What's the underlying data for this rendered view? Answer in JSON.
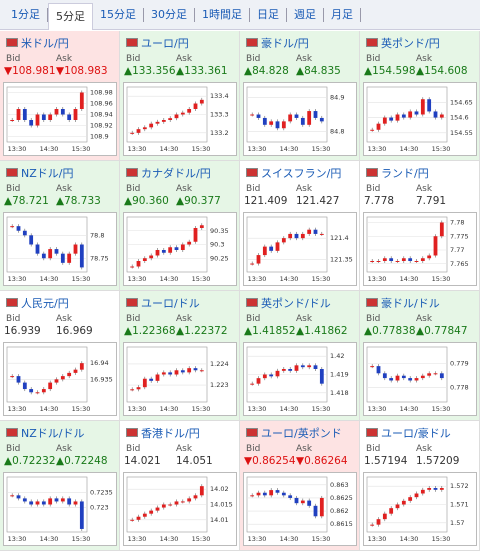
{
  "tabs": [
    "1分足",
    "5分足",
    "15分足",
    "30分足",
    "1時間足",
    "日足",
    "週足",
    "月足"
  ],
  "labels": {
    "bid": "Bid",
    "ask": "Ask"
  },
  "panels": [
    {
      "title": "米ドル/円",
      "bid": "▼108.981",
      "ask": "▼108.983",
      "trend": "down",
      "xticks": [
        "13:30",
        "14:30",
        "15:30"
      ],
      "yticks": [
        108.98,
        108.96,
        108.94,
        108.92,
        108.9
      ],
      "ylim": [
        108.89,
        108.99
      ],
      "values": [
        108.93,
        108.95,
        108.93,
        108.92,
        108.94,
        108.93,
        108.94,
        108.95,
        108.94,
        108.93,
        108.95,
        108.98
      ]
    },
    {
      "title": "ユーロ/円",
      "bid": "▲133.356",
      "ask": "▲133.361",
      "trend": "up",
      "xticks": [
        "13:30",
        "14:30",
        "15:30"
      ],
      "yticks": [
        133.4,
        133.3,
        133.2
      ],
      "ylim": [
        133.15,
        133.45
      ],
      "values": [
        133.2,
        133.22,
        133.23,
        133.25,
        133.26,
        133.27,
        133.28,
        133.3,
        133.31,
        133.33,
        133.36,
        133.38
      ]
    },
    {
      "title": "豪ドル/円",
      "bid": "▲84.828",
      "ask": "▲84.835",
      "trend": "up",
      "xticks": [
        "13:30",
        "14:30",
        "15:30"
      ],
      "yticks": [
        84.9,
        84.8
      ],
      "ylim": [
        84.77,
        84.93
      ],
      "values": [
        84.85,
        84.84,
        84.82,
        84.83,
        84.81,
        84.83,
        84.85,
        84.84,
        84.82,
        84.86,
        84.84,
        84.83
      ]
    },
    {
      "title": "英ポンド/円",
      "bid": "▲154.598",
      "ask": "▲154.608",
      "trend": "up",
      "xticks": [
        "13:30",
        "14:30",
        "15:30"
      ],
      "yticks": [
        154.65,
        154.6,
        154.55
      ],
      "ylim": [
        154.52,
        154.7
      ],
      "values": [
        154.56,
        154.58,
        154.6,
        154.59,
        154.61,
        154.6,
        154.62,
        154.61,
        154.66,
        154.62,
        154.6,
        154.61
      ]
    },
    {
      "title": "NZドル/円",
      "bid": "▲78.721",
      "ask": "▲78.733",
      "trend": "up",
      "xticks": [
        "13:30",
        "14:30",
        "15:30"
      ],
      "yticks": [
        78.8,
        78.75
      ],
      "ylim": [
        78.72,
        78.84
      ],
      "values": [
        78.82,
        78.81,
        78.8,
        78.78,
        78.76,
        78.75,
        78.77,
        78.76,
        78.74,
        78.76,
        78.78,
        78.73
      ]
    },
    {
      "title": "カナダドル/円",
      "bid": "▲90.360",
      "ask": "▲90.377",
      "trend": "up",
      "xticks": [
        "13:30",
        "14:30",
        "15:30"
      ],
      "yticks": [
        90.35,
        90.3,
        90.25
      ],
      "ylim": [
        90.2,
        90.4
      ],
      "values": [
        90.22,
        90.24,
        90.25,
        90.26,
        90.28,
        90.27,
        90.29,
        90.28,
        90.3,
        90.31,
        90.36,
        90.37
      ]
    },
    {
      "title": "スイスフラン/円",
      "bid": "121.409",
      "ask": "121.427",
      "trend": "flat",
      "xticks": [
        "13:30",
        "14:30",
        "15:30"
      ],
      "yticks": [
        121.4,
        121.35
      ],
      "ylim": [
        121.32,
        121.45
      ],
      "values": [
        121.34,
        121.36,
        121.38,
        121.37,
        121.39,
        121.4,
        121.41,
        121.4,
        121.41,
        121.42,
        121.41,
        121.41
      ]
    },
    {
      "title": "ランド/円",
      "bid": "7.778",
      "ask": "7.791",
      "trend": "flat",
      "xticks": [
        "13:30",
        "14:30",
        "15:30"
      ],
      "yticks": [
        7.78,
        7.775,
        7.77,
        7.765
      ],
      "ylim": [
        7.762,
        7.782
      ],
      "values": [
        7.766,
        7.766,
        7.767,
        7.766,
        7.766,
        7.767,
        7.766,
        7.766,
        7.767,
        7.768,
        7.775,
        7.78
      ]
    },
    {
      "title": "人民元/円",
      "bid": "16.939",
      "ask": "16.969",
      "trend": "flat",
      "xticks": [
        "13:30",
        "14:30",
        "15:30"
      ],
      "yticks": [
        16.94,
        16.935
      ],
      "ylim": [
        16.928,
        16.945
      ],
      "values": [
        16.936,
        16.934,
        16.932,
        16.931,
        16.931,
        16.932,
        16.934,
        16.935,
        16.936,
        16.937,
        16.938,
        16.94
      ]
    },
    {
      "title": "ユーロ/ドル",
      "bid": "▲1.22368",
      "ask": "▲1.22372",
      "trend": "up",
      "xticks": [
        "13:30",
        "14:30",
        "15:30"
      ],
      "yticks": [
        1.224,
        1.223
      ],
      "ylim": [
        1.2222,
        1.2248
      ],
      "values": [
        1.2228,
        1.2229,
        1.2233,
        1.2232,
        1.2235,
        1.2236,
        1.2235,
        1.2237,
        1.2236,
        1.2238,
        1.2237,
        1.2237
      ]
    },
    {
      "title": "英ポンド/ドル",
      "bid": "▲1.41852",
      "ask": "▲1.41862",
      "trend": "up",
      "xticks": [
        "13:30",
        "14:30",
        "15:30"
      ],
      "yticks": [
        1.42,
        1.419,
        1.418
      ],
      "ylim": [
        1.4175,
        1.4205
      ],
      "values": [
        1.4185,
        1.4188,
        1.419,
        1.4189,
        1.4192,
        1.4193,
        1.4192,
        1.4195,
        1.4194,
        1.4195,
        1.4193,
        1.4185
      ]
    },
    {
      "title": "豪ドル/ドル",
      "bid": "▲0.77838",
      "ask": "▲0.77847",
      "trend": "up",
      "xticks": [
        "13:30",
        "14:30",
        "15:30"
      ],
      "yticks": [
        0.779,
        0.778
      ],
      "ylim": [
        0.7774,
        0.7797
      ],
      "values": [
        0.7789,
        0.7786,
        0.7784,
        0.7783,
        0.7785,
        0.7784,
        0.7783,
        0.7784,
        0.7785,
        0.7786,
        0.7786,
        0.7784
      ]
    },
    {
      "title": "NZドル/ドル",
      "bid": "▲0.72232",
      "ask": "▲0.72248",
      "trend": "up",
      "xticks": [
        "13:30",
        "14:30",
        "15:30"
      ],
      "yticks": [
        0.7235,
        0.723
      ],
      "ylim": [
        0.7222,
        0.724
      ],
      "values": [
        0.7234,
        0.7233,
        0.7232,
        0.7231,
        0.7232,
        0.7231,
        0.7233,
        0.7232,
        0.7233,
        0.7231,
        0.7232,
        0.7223
      ]
    },
    {
      "title": "香港ドル/円",
      "bid": "14.021",
      "ask": "14.051",
      "trend": "flat",
      "xticks": [
        "13:30",
        "14:30",
        "15:30"
      ],
      "yticks": [
        14.02,
        14.015,
        14.01
      ],
      "ylim": [
        14.006,
        14.024
      ],
      "values": [
        14.01,
        14.011,
        14.012,
        14.013,
        14.014,
        14.015,
        14.015,
        14.016,
        14.016,
        14.017,
        14.018,
        14.021
      ]
    },
    {
      "title": "ユーロ/英ポンド",
      "bid": "▼0.86254",
      "ask": "▼0.86264",
      "trend": "down",
      "xticks": [
        "13:30",
        "14:30",
        "15:30"
      ],
      "yticks": [
        0.863,
        0.8625,
        0.862,
        0.8615
      ],
      "ylim": [
        0.8612,
        0.8633
      ],
      "values": [
        0.8626,
        0.8627,
        0.8626,
        0.8628,
        0.8627,
        0.8626,
        0.8625,
        0.8623,
        0.8624,
        0.8622,
        0.8618,
        0.8625
      ]
    },
    {
      "title": "ユーロ/豪ドル",
      "bid": "1.57194",
      "ask": "1.57209",
      "trend": "flat",
      "xticks": [
        "13:30",
        "14:30",
        "15:30"
      ],
      "yticks": [
        1.572,
        1.571,
        1.57
      ],
      "ylim": [
        1.5695,
        1.5725
      ],
      "values": [
        1.5699,
        1.5702,
        1.5705,
        1.5708,
        1.571,
        1.5712,
        1.5714,
        1.5716,
        1.5718,
        1.5719,
        1.5718,
        1.5719
      ]
    }
  ]
}
